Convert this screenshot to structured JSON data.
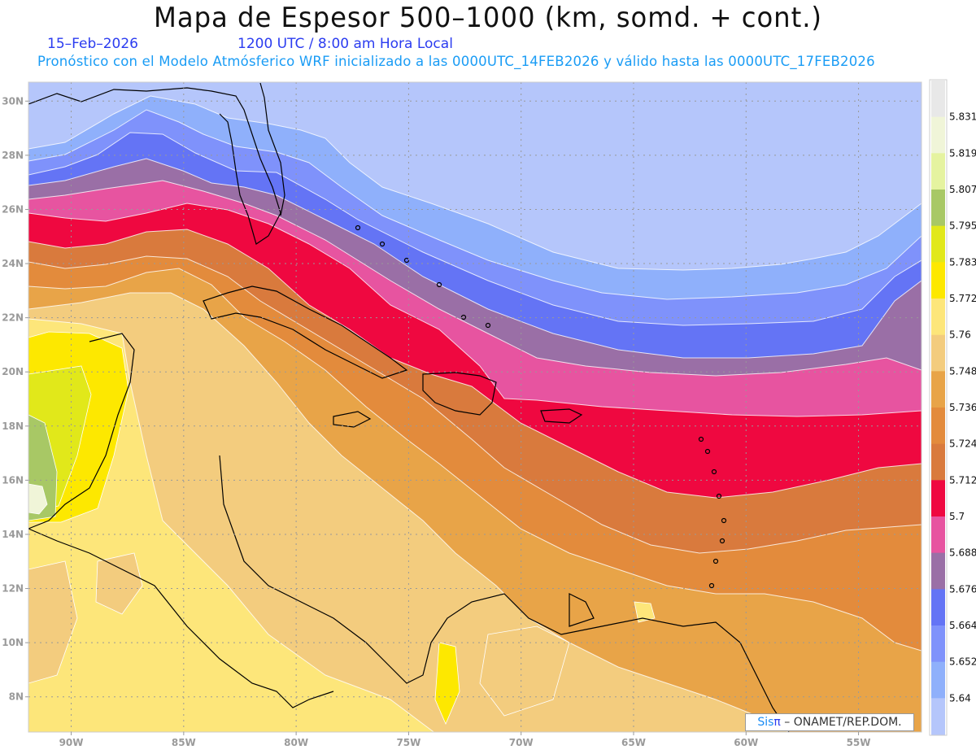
{
  "header": {
    "title": "Mapa de Espesor 500–1000 (km, somd. + cont.)",
    "date": "15–Feb–2026",
    "time": "1200 UTC / 8:00 am Hora Local",
    "subtitle": "Pronóstico con el Modelo Atmósferico WRF inicializado a las 0000UTC_14FEB2026 y válido hasta las  0000UTC_17FEB2026"
  },
  "map": {
    "lat_labels": [
      "30N",
      "28N",
      "26N",
      "24N",
      "22N",
      "20N",
      "18N",
      "16N",
      "14N",
      "12N",
      "10N",
      "8N"
    ],
    "lon_labels": [
      "90W",
      "85W",
      "80W",
      "75W",
      "70W",
      "65W",
      "60W",
      "55W"
    ],
    "extent": {
      "lon": [
        -91.9,
        -52.2
      ],
      "lat": [
        6.7,
        30.7
      ]
    }
  },
  "colorbar": {
    "colors": [
      "#e8e8e8",
      "#f0f5d8",
      "#e5f3a0",
      "#a8c865",
      "#e1e81a",
      "#fde800",
      "#fde67a",
      "#f3cc7e",
      "#e8a448",
      "#e38b3c",
      "#d97a3d",
      "#ef0840",
      "#e754a0",
      "#9a6fa6",
      "#6474f5",
      "#7f92fb",
      "#8fb0fb",
      "#b5c6fb"
    ],
    "labels": [
      "5.831",
      "5.819",
      "5.807",
      "5.795",
      "5.783",
      "5.772",
      "5.76",
      "5.748",
      "5.736",
      "5.724",
      "5.712",
      "5.7",
      "5.688",
      "5.676",
      "5.664",
      "5.652",
      "5.64"
    ]
  },
  "watermark": {
    "brand": "Sis",
    "pi": "π",
    "text": " –  ONAMET/REP.DOM."
  }
}
